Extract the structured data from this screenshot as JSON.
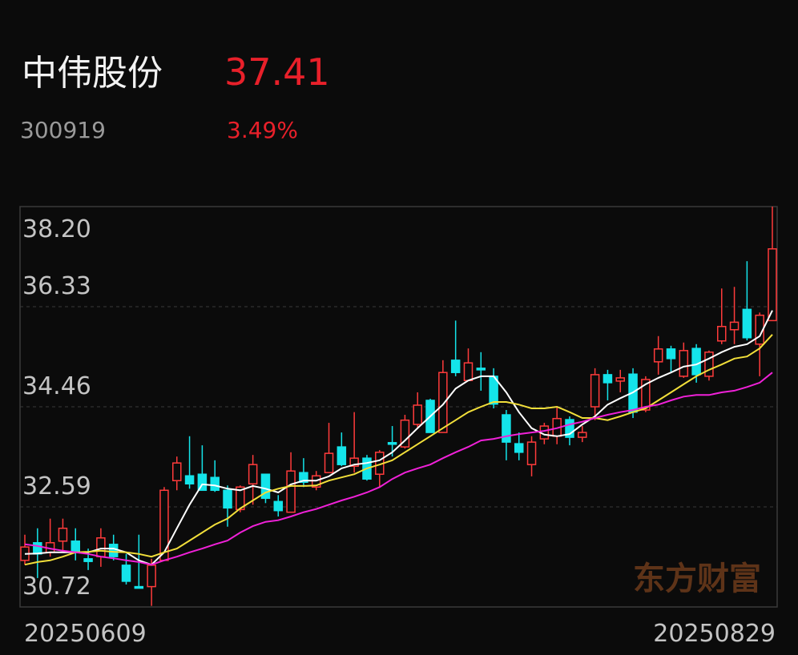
{
  "header": {
    "name": "中伟股份",
    "price": 37.41,
    "code": "300919",
    "change": "3.49%"
  },
  "chart_data": {
    "type": "candlestick",
    "watermark": "东方财富",
    "categories": [
      "20250609",
      null,
      null,
      null,
      null,
      null,
      null,
      null,
      null,
      null,
      null,
      null,
      null,
      null,
      null,
      null,
      null,
      null,
      null,
      null,
      null,
      null,
      null,
      null,
      null,
      null,
      null,
      null,
      null,
      null,
      null,
      null,
      null,
      null,
      null,
      null,
      null,
      null,
      null,
      null,
      null,
      null,
      null,
      null,
      null,
      null,
      null,
      null,
      null,
      null,
      null,
      null,
      null,
      null,
      null,
      null,
      null,
      null,
      null,
      "20250829"
    ],
    "open": [
      31.59,
      31.92,
      31.74,
      31.95,
      31.95,
      31.62,
      31.66,
      31.89,
      31.5,
      31.1,
      31.1,
      31.59,
      33.08,
      33.17,
      33.2,
      33.14,
      32.9,
      32.54,
      33.02,
      33.2,
      32.69,
      32.49,
      33.23,
      32.96,
      33.23,
      33.71,
      33.35,
      33.5,
      33.2,
      33.79,
      33.71,
      34.13,
      34.58,
      33.98,
      35.33,
      34.95,
      35.18,
      35.03,
      34.31,
      33.77,
      33.38,
      33.86,
      33.91,
      34.22,
      33.89,
      34.46,
      35.06,
      34.94,
      35.07,
      34.4,
      35.3,
      35.54,
      35.03,
      35.55,
      35.03,
      35.69,
      35.9,
      36.28,
      35.63,
      36.07
    ],
    "high": [
      32.07,
      32.19,
      32.37,
      32.37,
      32.19,
      31.81,
      32.19,
      32.07,
      31.71,
      32.07,
      31.62,
      32.96,
      33.53,
      33.91,
      33.74,
      33.46,
      32.99,
      32.99,
      33.56,
      33.2,
      32.81,
      33.61,
      33.5,
      33.26,
      34.16,
      33.98,
      34.36,
      33.56,
      33.65,
      34.1,
      34.31,
      34.73,
      34.61,
      35.33,
      36.07,
      35.55,
      35.48,
      35.18,
      34.4,
      33.98,
      33.91,
      34.16,
      34.46,
      34.28,
      34.1,
      35.18,
      35.15,
      35.15,
      35.18,
      35.03,
      35.78,
      35.6,
      35.66,
      35.63,
      35.51,
      36.67,
      36.7,
      37.18,
      36.22,
      38.2
    ],
    "low": [
      31.51,
      31.26,
      31.66,
      31.74,
      31.59,
      31.41,
      31.47,
      31.59,
      31.14,
      31.07,
      30.74,
      31.59,
      32.9,
      32.93,
      32.9,
      32.87,
      32.22,
      32.49,
      32.63,
      32.66,
      32.41,
      32.49,
      32.96,
      32.9,
      33.23,
      33.35,
      33.23,
      33.08,
      32.96,
      33.53,
      33.68,
      34.06,
      33.98,
      33.98,
      35.03,
      34.95,
      34.76,
      34.43,
      33.46,
      33.46,
      33.16,
      33.76,
      33.76,
      33.74,
      33.8,
      34.21,
      34.58,
      34.73,
      34.25,
      34.36,
      35.06,
      35.1,
      35.0,
      34.91,
      34.95,
      35.63,
      35.63,
      35.7,
      35.03,
      36.07
    ],
    "close": [
      31.84,
      31.71,
      31.92,
      32.19,
      31.77,
      31.57,
      32.01,
      31.66,
      31.2,
      31.07,
      31.5,
      32.9,
      33.41,
      33.02,
      32.9,
      32.9,
      32.57,
      32.96,
      33.38,
      32.75,
      32.52,
      33.26,
      33.05,
      33.17,
      33.59,
      33.38,
      33.5,
      33.11,
      33.61,
      33.76,
      34.21,
      34.49,
      33.98,
      35.1,
      35.1,
      35.28,
      35.15,
      34.51,
      33.8,
      33.61,
      33.8,
      34.1,
      34.24,
      33.89,
      33.98,
      35.06,
      34.91,
      35.0,
      34.36,
      34.97,
      35.54,
      35.36,
      35.51,
      35.06,
      35.48,
      35.96,
      36.04,
      35.75,
      36.17,
      37.41
    ],
    "up_color": "#ff3b3b",
    "down_color": "#14e4ea",
    "moving_averages": [
      {
        "color": "#ffffff",
        "values": [
          31.71,
          31.72,
          31.74,
          31.74,
          31.74,
          31.74,
          31.81,
          31.81,
          31.74,
          31.59,
          31.51,
          31.74,
          32.19,
          32.63,
          33.01,
          32.99,
          32.93,
          32.9,
          32.98,
          32.93,
          32.86,
          33.01,
          33.08,
          33.08,
          33.16,
          33.31,
          33.38,
          33.41,
          33.46,
          33.61,
          33.83,
          34.06,
          34.28,
          34.5,
          34.8,
          34.95,
          35.03,
          35.03,
          34.73,
          34.36,
          34.06,
          33.94,
          33.91,
          33.95,
          34.13,
          34.28,
          34.5,
          34.62,
          34.73,
          34.88,
          35.0,
          35.1,
          35.21,
          35.25,
          35.36,
          35.48,
          35.58,
          35.63,
          35.78,
          36.26
        ]
      },
      {
        "color": "#f2df3a",
        "values": [
          31.51,
          31.56,
          31.59,
          31.66,
          31.74,
          31.75,
          31.77,
          31.75,
          31.74,
          31.71,
          31.66,
          31.74,
          31.81,
          31.96,
          32.11,
          32.26,
          32.37,
          32.56,
          32.71,
          32.86,
          32.93,
          32.98,
          32.98,
          32.99,
          33.08,
          33.14,
          33.2,
          33.31,
          33.38,
          33.46,
          33.61,
          33.76,
          33.91,
          34.06,
          34.21,
          34.36,
          34.46,
          34.55,
          34.55,
          34.5,
          34.43,
          34.43,
          34.46,
          34.36,
          34.25,
          34.25,
          34.21,
          34.28,
          34.36,
          34.43,
          34.58,
          34.73,
          34.88,
          35.03,
          35.15,
          35.25,
          35.36,
          35.4,
          35.55,
          35.81
        ]
      },
      {
        "color": "#f021d8",
        "values": [
          31.89,
          31.86,
          31.81,
          31.77,
          31.74,
          31.71,
          31.66,
          31.63,
          31.59,
          31.56,
          31.51,
          31.59,
          31.66,
          31.74,
          31.81,
          31.89,
          31.96,
          32.11,
          32.23,
          32.31,
          32.34,
          32.41,
          32.49,
          32.55,
          32.63,
          32.71,
          32.78,
          32.86,
          32.96,
          33.11,
          33.23,
          33.31,
          33.38,
          33.5,
          33.61,
          33.71,
          33.83,
          33.86,
          33.91,
          33.95,
          33.98,
          34.01,
          34.06,
          34.13,
          34.18,
          34.25,
          34.31,
          34.36,
          34.4,
          34.46,
          34.5,
          34.58,
          34.65,
          34.68,
          34.68,
          34.73,
          34.76,
          34.83,
          34.91,
          35.1
        ]
      }
    ],
    "ylim": [
      30.72,
      38.2
    ],
    "yticks": [
      30.72,
      32.59,
      34.46,
      36.33,
      {
        "value": 38.2,
        "label": "38.20"
      }
    ],
    "grid": true
  }
}
